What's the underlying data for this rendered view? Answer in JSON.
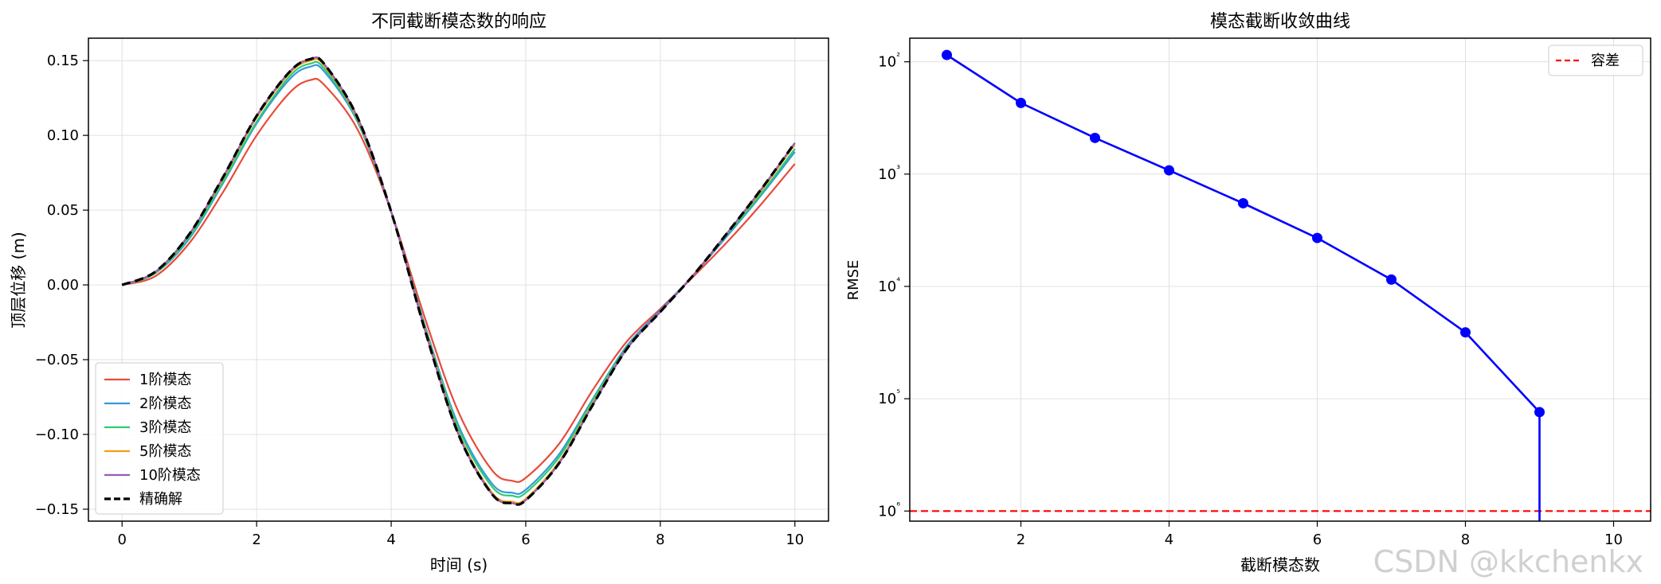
{
  "chart_data": [
    {
      "type": "line",
      "title": "不同截断模态数的响应",
      "xlabel": "时间 (s)",
      "ylabel": "顶层位移 (m)",
      "xlim": [
        -0.5,
        10.5
      ],
      "ylim": [
        -0.158,
        0.165
      ],
      "xticks": [
        0,
        2,
        4,
        6,
        8,
        10
      ],
      "xtick_labels": [
        "0",
        "2",
        "4",
        "6",
        "8",
        "10"
      ],
      "yticks": [
        -0.15,
        -0.1,
        -0.05,
        0.0,
        0.05,
        0.1,
        0.15
      ],
      "ytick_labels": [
        "−0.15",
        "−0.10",
        "−0.05",
        "0.00",
        "0.05",
        "0.10",
        "0.15"
      ],
      "grid": true,
      "legend_position": "lower-left",
      "series": [
        {
          "name": "1阶模态",
          "color": "#e74c3c",
          "style": "solid",
          "x": [
            0,
            0.5,
            1,
            1.5,
            2,
            2.5,
            2.8,
            3,
            3.5,
            4,
            4.5,
            5,
            5.5,
            5.8,
            6,
            6.5,
            7,
            7.5,
            8,
            8.5,
            9,
            9.5,
            10
          ],
          "y": [
            0,
            0.006,
            0.028,
            0.062,
            0.1,
            0.129,
            0.137,
            0.134,
            0.104,
            0.049,
            -0.022,
            -0.085,
            -0.124,
            -0.131,
            -0.129,
            -0.106,
            -0.07,
            -0.038,
            -0.016,
            0.006,
            0.029,
            0.054,
            0.081
          ]
        },
        {
          "name": "2阶模态",
          "color": "#3498db",
          "style": "solid",
          "x": [
            0,
            0.5,
            1,
            1.5,
            2,
            2.5,
            2.8,
            3,
            3.5,
            4,
            4.5,
            5,
            5.5,
            5.8,
            6,
            6.5,
            7,
            7.5,
            8,
            8.5,
            9,
            9.5,
            10
          ],
          "y": [
            0,
            0.008,
            0.031,
            0.068,
            0.108,
            0.138,
            0.146,
            0.143,
            0.109,
            0.049,
            -0.027,
            -0.094,
            -0.133,
            -0.139,
            -0.137,
            -0.113,
            -0.076,
            -0.041,
            -0.017,
            0.007,
            0.033,
            0.06,
            0.089
          ]
        },
        {
          "name": "3阶模态",
          "color": "#2ecc71",
          "style": "solid",
          "x": [
            0,
            0.5,
            1,
            1.5,
            2,
            2.5,
            2.8,
            3,
            3.5,
            4,
            4.5,
            5,
            5.5,
            5.8,
            6,
            6.5,
            7,
            7.5,
            8,
            8.5,
            9,
            9.5,
            10
          ],
          "y": [
            0,
            0.008,
            0.032,
            0.069,
            0.109,
            0.14,
            0.148,
            0.145,
            0.11,
            0.049,
            -0.028,
            -0.096,
            -0.135,
            -0.141,
            -0.139,
            -0.115,
            -0.077,
            -0.042,
            -0.018,
            0.007,
            0.034,
            0.061,
            0.091
          ]
        },
        {
          "name": "5阶模态",
          "color": "#f39c12",
          "style": "solid",
          "x": [
            0,
            0.5,
            1,
            1.5,
            2,
            2.5,
            2.8,
            3,
            3.5,
            4,
            4.5,
            5,
            5.5,
            5.8,
            6,
            6.5,
            7,
            7.5,
            8,
            8.5,
            9,
            9.5,
            10
          ],
          "y": [
            0,
            0.009,
            0.034,
            0.071,
            0.112,
            0.142,
            0.15,
            0.147,
            0.111,
            0.049,
            -0.029,
            -0.099,
            -0.139,
            -0.145,
            -0.143,
            -0.118,
            -0.079,
            -0.043,
            -0.018,
            0.007,
            0.035,
            0.063,
            0.094
          ]
        },
        {
          "name": "10阶模态",
          "color": "#9b59b6",
          "style": "solid",
          "x": [
            0,
            0.5,
            1,
            1.5,
            2,
            2.5,
            2.8,
            3,
            3.5,
            4,
            4.5,
            5,
            5.5,
            5.8,
            6,
            6.5,
            7,
            7.5,
            8,
            8.5,
            9,
            9.5,
            10
          ],
          "y": [
            0,
            0.009,
            0.034,
            0.072,
            0.113,
            0.143,
            0.151,
            0.148,
            0.112,
            0.049,
            -0.03,
            -0.1,
            -0.14,
            -0.146,
            -0.144,
            -0.119,
            -0.08,
            -0.043,
            -0.018,
            0.007,
            0.035,
            0.064,
            0.095
          ]
        },
        {
          "name": "精确解",
          "color": "#000000",
          "style": "dashed",
          "x": [
            0,
            0.5,
            1,
            1.5,
            2,
            2.5,
            2.8,
            3,
            3.5,
            4,
            4.5,
            5,
            5.5,
            5.8,
            6,
            6.5,
            7,
            7.5,
            8,
            8.5,
            9,
            9.5,
            10
          ],
          "y": [
            0,
            0.009,
            0.034,
            0.072,
            0.113,
            0.143,
            0.151,
            0.148,
            0.112,
            0.049,
            -0.03,
            -0.1,
            -0.14,
            -0.146,
            -0.144,
            -0.119,
            -0.08,
            -0.043,
            -0.018,
            0.007,
            0.035,
            0.064,
            0.095
          ]
        }
      ]
    },
    {
      "type": "line",
      "title": "模态截断收敛曲线",
      "xlabel": "截断模态数",
      "ylabel": "RMSE",
      "xlim": [
        0.5,
        10.5
      ],
      "ylim_log10": [
        -6.09,
        -1.79
      ],
      "yscale": "log",
      "xticks": [
        2,
        4,
        6,
        8,
        10
      ],
      "xtick_labels": [
        "2",
        "4",
        "6",
        "8",
        "10"
      ],
      "ytick_exponents": [
        -2,
        -3,
        -4,
        -5,
        -6
      ],
      "ytick_labels": [
        {
          "base": "10",
          "sup": "²"
        },
        {
          "base": "10",
          "sup": "³"
        },
        {
          "base": "10",
          "sup": "⁴"
        },
        {
          "base": "10",
          "sup": "⁵"
        },
        {
          "base": "10",
          "sup": "⁶"
        }
      ],
      "grid": true,
      "legend_position": "top-right",
      "series": [
        {
          "name": "",
          "color": "#0000ff",
          "style": "solid-markers",
          "x": [
            1,
            2,
            3,
            4,
            5,
            6,
            7,
            8,
            9
          ],
          "y": [
            0.0115,
            0.0043,
            0.0021,
            0.00108,
            0.00055,
            0.00027,
            0.000115,
            3.9e-05,
            7.6e-06
          ]
        },
        {
          "name": "容差",
          "color": "#ff0000",
          "style": "dashed-hline",
          "y": 1e-06
        }
      ]
    }
  ],
  "watermark": "CSDN @kkchenkx"
}
